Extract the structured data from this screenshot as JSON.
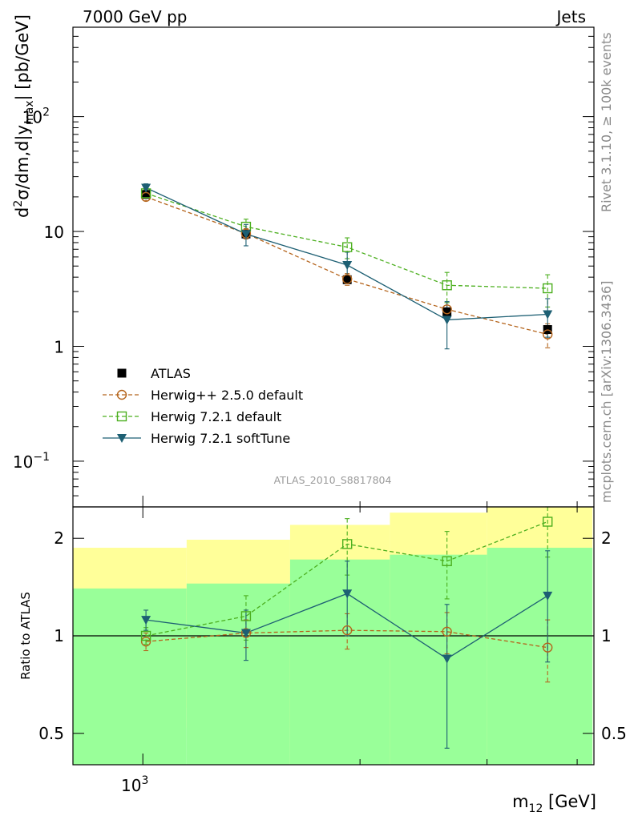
{
  "chart_data": {
    "type": "line",
    "header_left": "7000 GeV pp",
    "header_right": "Jets",
    "side_label_top": "Rivet 3.1.10, ≥ 100k events",
    "side_label_bottom": "mcplots.cern.ch [arXiv:1306.3436]",
    "analysis_id": "ATLAS_2010_S8817804",
    "xlabel_base": "m",
    "xlabel_sub": "12",
    "xlabel_unit": " [GeV]",
    "x_tick_label": {
      "base": "10",
      "exp": "3"
    },
    "main_ylabel": {
      "a": "d",
      "a_sup": "2",
      "b": "σ/dm,d|y",
      "b_sub": "max",
      "c": "| [pb/GeV]"
    },
    "main_y_ticks": [
      {
        "value": 0.1,
        "base": "10",
        "exp": "−1"
      },
      {
        "value": 1,
        "base": "1",
        "exp": ""
      },
      {
        "value": 10,
        "base": "10",
        "exp": ""
      },
      {
        "value": 100,
        "base": "10",
        "exp": "2"
      }
    ],
    "ratio_ylabel": "Ratio to ATLAS",
    "ratio_y_ticks": [
      {
        "value": 0.5,
        "label": "0.5"
      },
      {
        "value": 1,
        "label": "1"
      },
      {
        "value": 2,
        "label": "2"
      }
    ],
    "bin_centers_gev": [
      1010,
      1390,
      1920,
      2640,
      3640
    ],
    "bin_edges_gev": [
      800,
      1150,
      1600,
      2200,
      3000,
      4200
    ],
    "xlim_gev": [
      800,
      4220
    ],
    "ylim_main": [
      0.04,
      600
    ],
    "ylim_ratio": [
      0.4,
      2.5
    ],
    "legend": [
      {
        "label": "ATLAS",
        "marker": "square-filled",
        "color": "#000000",
        "dash": "none"
      },
      {
        "label": "Herwig++ 2.5.0 default",
        "marker": "circle-open",
        "color": "#b5651d",
        "dash": "dashed"
      },
      {
        "label": "Herwig 7.2.1 default",
        "marker": "square-open",
        "color": "#4caf1f",
        "dash": "dashed"
      },
      {
        "label": "Herwig 7.2.1 softTune",
        "marker": "triangle-down",
        "color": "#1d5f73",
        "dash": "solid"
      }
    ],
    "data": {
      "name": "ATLAS",
      "values": [
        21,
        9.5,
        3.8,
        2.0,
        1.4
      ]
    },
    "series": [
      {
        "name": "Herwig++ 2.5.0 default",
        "values": [
          20,
          9.6,
          3.85,
          2.1,
          1.27
        ],
        "err": [
          1.5,
          1.0,
          0.45,
          0.3,
          0.3
        ],
        "ratio": [
          0.96,
          1.02,
          1.04,
          1.03,
          0.92
        ],
        "ratio_err": [
          0.06,
          0.1,
          0.13,
          0.15,
          0.2
        ]
      },
      {
        "name": "Herwig 7.2.1 default",
        "values": [
          21.5,
          11.0,
          7.3,
          3.4,
          3.2
        ],
        "err": [
          1.5,
          1.8,
          1.5,
          1.0,
          1.0
        ],
        "ratio": [
          1.0,
          1.15,
          1.92,
          1.7,
          2.25
        ],
        "ratio_err": [
          0.06,
          0.18,
          0.38,
          0.4,
          0.5
        ]
      },
      {
        "name": "Herwig 7.2.1 softTune",
        "values": [
          24,
          9.5,
          5.1,
          1.7,
          1.9
        ],
        "err": [
          2.0,
          2.0,
          1.5,
          0.75,
          0.7
        ],
        "ratio": [
          1.12,
          1.02,
          1.35,
          0.85,
          1.33
        ],
        "ratio_err": [
          0.08,
          0.18,
          0.35,
          0.4,
          0.5
        ]
      }
    ],
    "uncertainty_bands": {
      "stat_color": "#99ff99",
      "total_color": "#ffff99",
      "total_hi": [
        1.87,
        1.98,
        2.2,
        2.4,
        2.6
      ],
      "total_lo": [
        0.6,
        0.52,
        0.0,
        0.0,
        0.0
      ],
      "stat_hi": [
        1.4,
        1.45,
        1.72,
        1.78,
        1.87
      ],
      "stat_lo": [
        0.0,
        0.0,
        0.0,
        0.0,
        0.0
      ]
    }
  }
}
